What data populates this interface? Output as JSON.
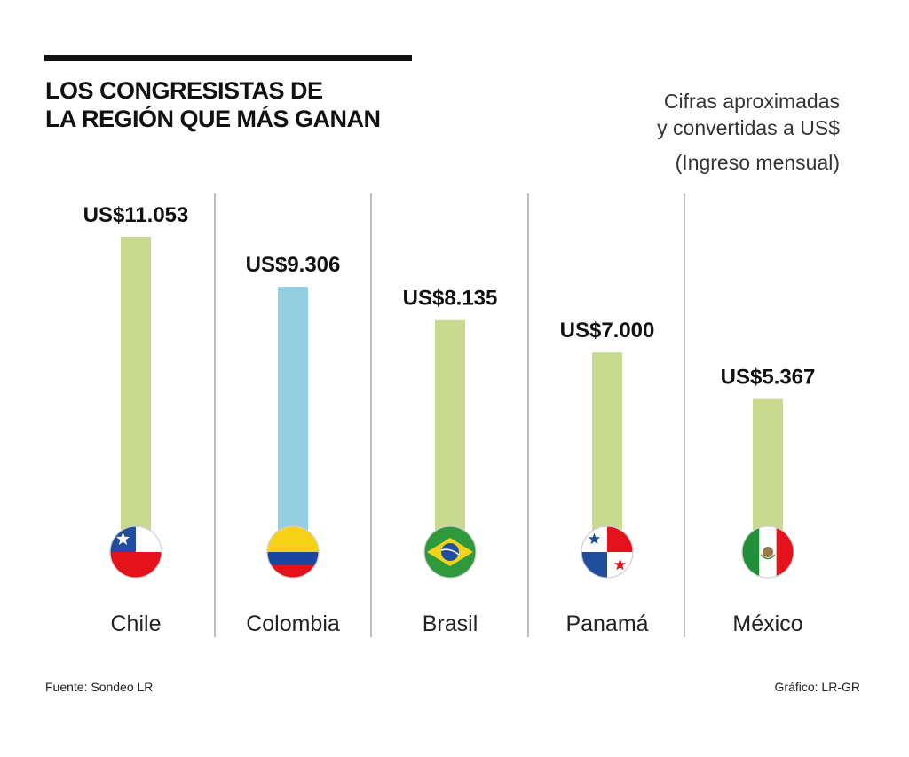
{
  "chart_data": {
    "type": "bar",
    "title": "LOS CONGRESISTAS DE LA REGIÓN QUE MÁS GANAN",
    "title_lines": [
      "LOS CONGRESISTAS DE",
      "LA REGIÓN QUE MÁS GANAN"
    ],
    "subtitle_lines": [
      "Cifras aproximadas",
      "y convertidas a US$"
    ],
    "subtitle2": "(Ingreso mensual)",
    "xlabel": "",
    "ylabel": "",
    "ylim": [
      0,
      11053
    ],
    "grid": false,
    "categories": [
      "Chile",
      "Colombia",
      "Brasil",
      "Panamá",
      "México"
    ],
    "values": [
      11053,
      9306,
      8135,
      7000,
      5367
    ],
    "value_labels": [
      "US$11.053",
      "US$9.306",
      "US$8.135",
      "US$7.000",
      "US$5.367"
    ],
    "bar_colors": [
      "#c8da8e",
      "#92cfe2",
      "#c8da8e",
      "#c8da8e",
      "#c8da8e"
    ],
    "flag_icons": [
      "chile-flag-icon",
      "colombia-flag-icon",
      "brazil-flag-icon",
      "panama-flag-icon",
      "mexico-flag-icon"
    ]
  },
  "footer": {
    "source": "Fuente: Sondeo LR",
    "credit": "Gráfico: LR-GR"
  }
}
